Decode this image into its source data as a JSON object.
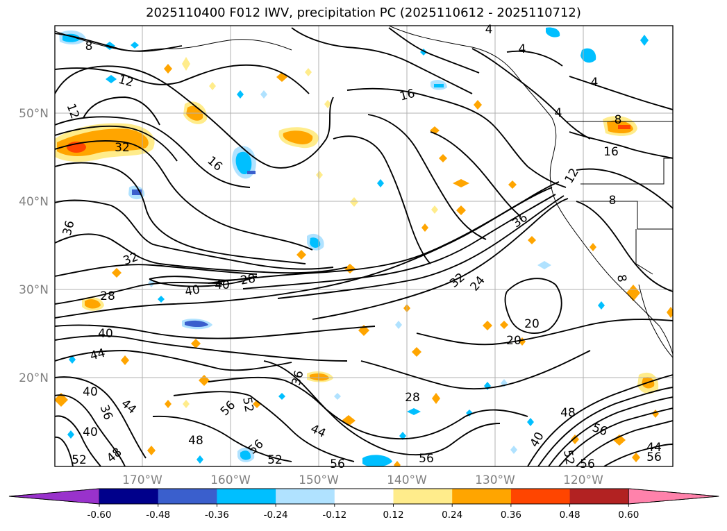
{
  "title": "2025110400 F012 IWV, precipitation PC (2025110612 - 2025110712)",
  "lat_labels": [
    "50°N",
    "40°N",
    "30°N",
    "20°N"
  ],
  "lon_labels": [
    "170°W",
    "160°W",
    "150°W",
    "140°W",
    "130°W",
    "120°W"
  ],
  "colorbar": {
    "ticks": [
      "-0.60",
      "-0.48",
      "-0.36",
      "-0.24",
      "-0.12",
      "0.12",
      "0.24",
      "0.36",
      "0.48",
      "0.60"
    ],
    "colors": [
      "#9932cc",
      "#00008b",
      "#3a5fcd",
      "#00bfff",
      "#b0e2ff",
      "#ffffff",
      "#ffec8b",
      "#ffa500",
      "#ff4500",
      "#b22222",
      "#ff82ab"
    ]
  },
  "contour_labels": [
    "8",
    "12",
    "12",
    "32",
    "16",
    "36",
    "32",
    "28",
    "40",
    "40",
    "28",
    "40",
    "44",
    "40",
    "40",
    "44",
    "36",
    "48",
    "48",
    "52",
    "56",
    "52",
    "52",
    "56",
    "36",
    "44",
    "28",
    "56",
    "32",
    "24",
    "36",
    "20",
    "20",
    "16",
    "16",
    "12",
    "8",
    "8",
    "4",
    "4",
    "4",
    "4",
    "8",
    "56",
    "56",
    "52",
    "56",
    "44",
    "56",
    "48",
    "40"
  ],
  "colors": {
    "contour": "#000000",
    "grid": "#b0b0b0",
    "coast": "#000000"
  }
}
